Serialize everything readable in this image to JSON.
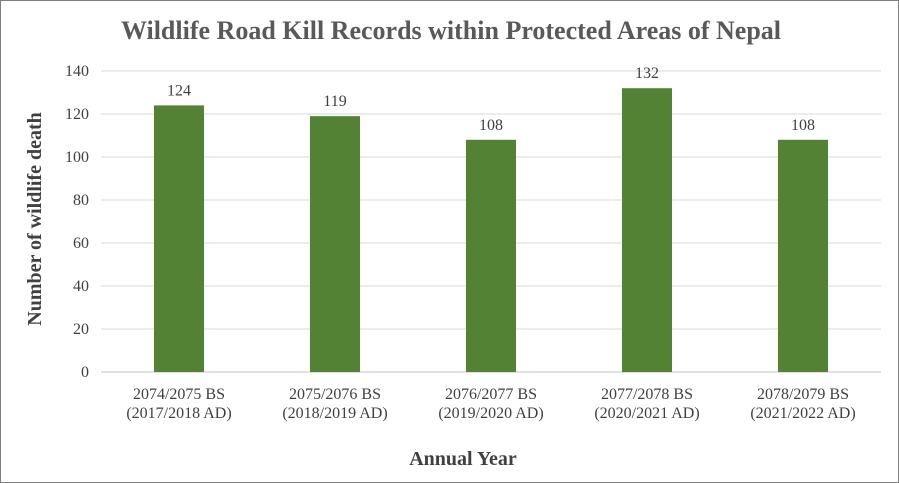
{
  "chart_data": {
    "type": "bar",
    "title": "Wildlife Road Kill Records within Protected Areas of Nepal",
    "xlabel": "Annual Year",
    "ylabel": "Number of wildlife death",
    "ylim": [
      0,
      140
    ],
    "yticks": [
      0,
      20,
      40,
      60,
      80,
      100,
      120,
      140
    ],
    "grid": true,
    "legend": "none",
    "bar_color": "#548235",
    "categories": [
      [
        "2074/2075 BS",
        "(2017/2018 AD)"
      ],
      [
        "2075/2076 BS",
        "(2018/2019 AD)"
      ],
      [
        "2076/2077 BS",
        "(2019/2020 AD)"
      ],
      [
        "2077/2078 BS",
        "(2020/2021 AD)"
      ],
      [
        "2078/2079 BS",
        "(2021/2022 AD)"
      ]
    ],
    "values": [
      124,
      119,
      108,
      132,
      108
    ],
    "data_labels": [
      "124",
      "119",
      "108",
      "132",
      "108"
    ]
  }
}
